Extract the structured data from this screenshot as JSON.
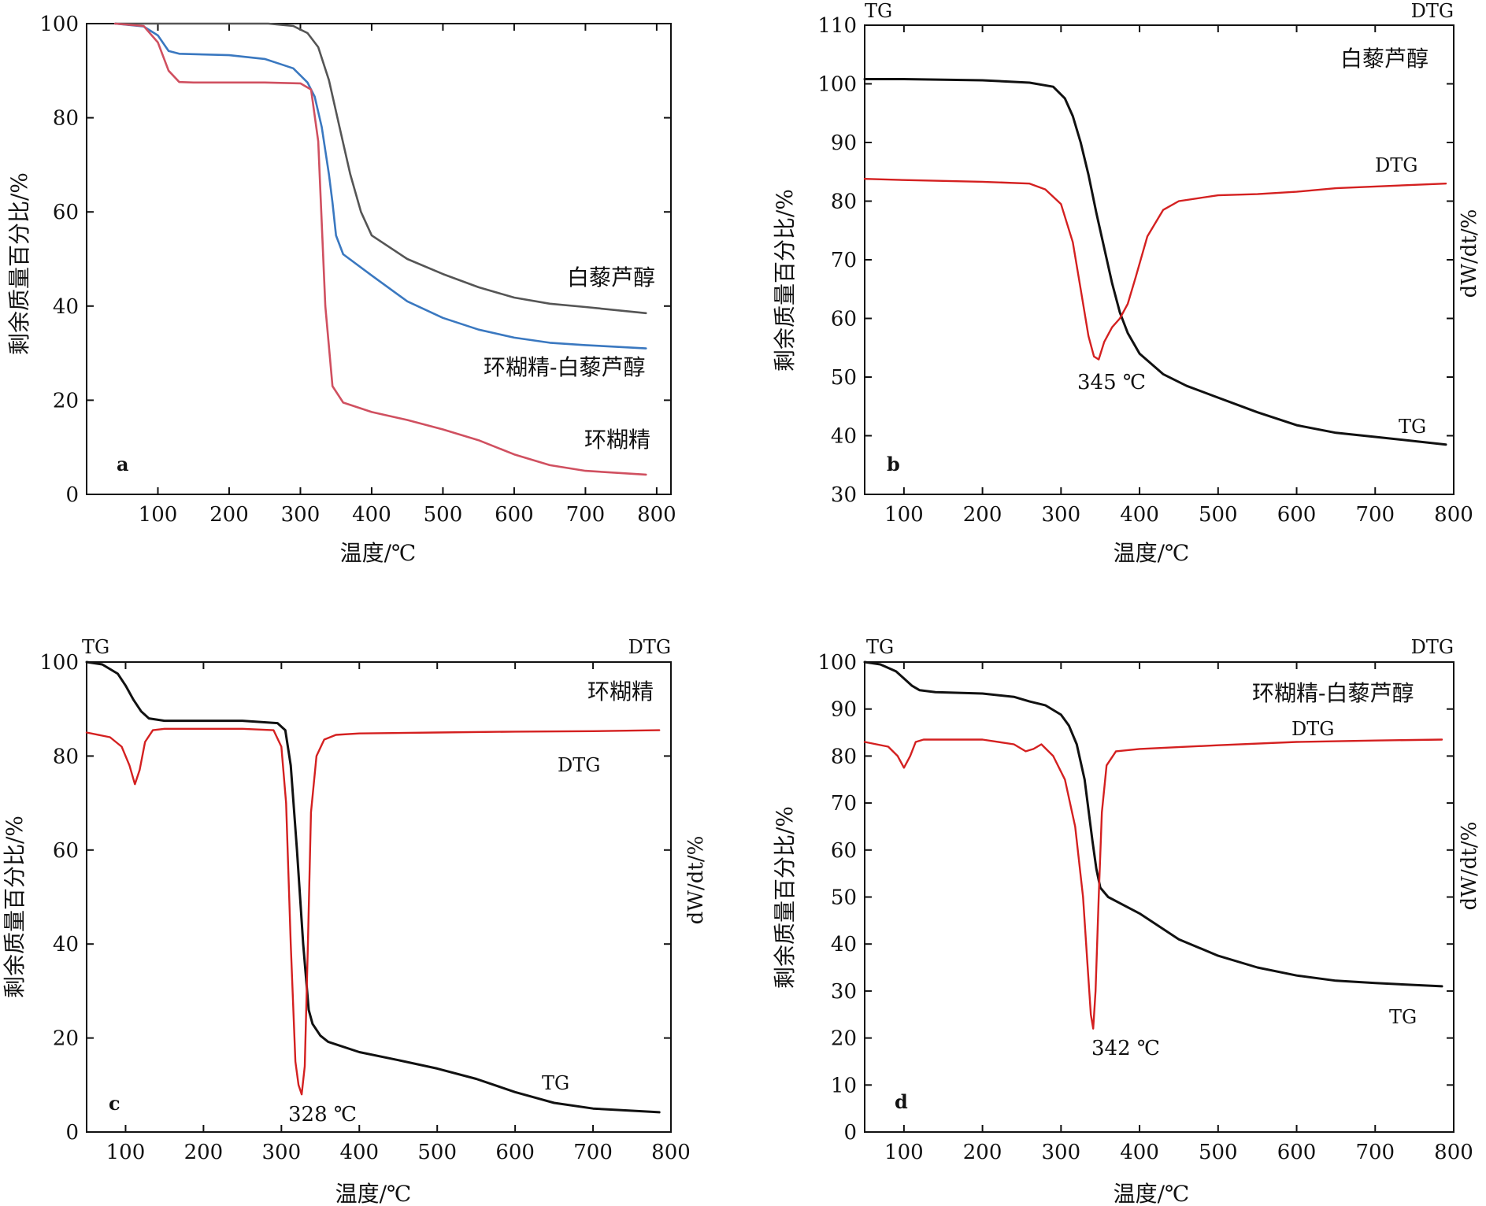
{
  "chart_data": [
    {
      "panel": "a",
      "type": "line",
      "xlabel": "温度/℃",
      "ylabel": "剩余质量百分比/%",
      "xlim": [
        0,
        820
      ],
      "ylim": [
        0,
        100
      ],
      "xticks": [
        100,
        200,
        300,
        400,
        500,
        600,
        700,
        800
      ],
      "yticks": [
        0,
        20,
        40,
        60,
        80,
        100
      ],
      "grid": false,
      "series": [
        {
          "name": "白藜芦醇",
          "color": "#555555",
          "x": [
            40,
            100,
            200,
            255,
            290,
            310,
            325,
            340,
            355,
            370,
            385,
            400,
            450,
            500,
            550,
            600,
            650,
            700,
            785
          ],
          "y": [
            100,
            100,
            100,
            100,
            99.5,
            98,
            95,
            88,
            78,
            68,
            60,
            55,
            50,
            46.8,
            44,
            41.8,
            40.5,
            39.8,
            38.5
          ]
        },
        {
          "name": "环糊精-白藜芦醇",
          "color": "#3a78c0",
          "x": [
            40,
            80,
            100,
            115,
            130,
            200,
            250,
            270,
            290,
            310,
            320,
            330,
            340,
            345,
            350,
            360,
            400,
            450,
            500,
            550,
            600,
            650,
            700,
            785
          ],
          "y": [
            100,
            99.4,
            97.5,
            94.2,
            93.6,
            93.3,
            92.5,
            91.5,
            90.5,
            87.5,
            84.5,
            78,
            68,
            62,
            55,
            51,
            46.5,
            41,
            37.5,
            35,
            33.3,
            32.2,
            31.7,
            31
          ]
        },
        {
          "name": "环糊精",
          "color": "#d05060",
          "x": [
            40,
            80,
            100,
            115,
            130,
            150,
            200,
            250,
            300,
            315,
            325,
            335,
            345,
            360,
            400,
            450,
            500,
            550,
            600,
            650,
            700,
            785
          ],
          "y": [
            100,
            99.5,
            96,
            90,
            87.6,
            87.5,
            87.5,
            87.5,
            87.3,
            86,
            75,
            40,
            23,
            19.5,
            17.5,
            15.8,
            13.8,
            11.5,
            8.5,
            6.2,
            5,
            4.2
          ]
        }
      ],
      "annotations": [
        "白藜芦醇",
        "环糊精-白藜芦醇",
        "环糊精",
        "a"
      ]
    },
    {
      "panel": "b",
      "type": "line",
      "xlabel": "温度/℃",
      "ylabel": "剩余质量百分比/%",
      "y2label": "dW/dt/%",
      "xlim": [
        50,
        800
      ],
      "ylim": [
        30,
        110
      ],
      "xticks": [
        100,
        200,
        300,
        400,
        500,
        600,
        700,
        800
      ],
      "yticks": [
        30,
        40,
        50,
        60,
        70,
        80,
        90,
        100,
        110
      ],
      "grid": false,
      "corner_labels": [
        "TG",
        "DTG"
      ],
      "series": [
        {
          "name": "TG",
          "color": "#111111",
          "x": [
            50,
            100,
            200,
            260,
            290,
            305,
            315,
            325,
            335,
            345,
            355,
            365,
            375,
            385,
            400,
            430,
            460,
            500,
            550,
            600,
            650,
            700,
            790
          ],
          "y": [
            100.8,
            100.8,
            100.6,
            100.2,
            99.5,
            97.5,
            94.5,
            90,
            84.5,
            78,
            72,
            66,
            61,
            57.5,
            54,
            50.5,
            48.5,
            46.5,
            44,
            41.8,
            40.5,
            39.8,
            38.5
          ]
        },
        {
          "name": "DTG",
          "color": "#d42020",
          "x": [
            50,
            100,
            200,
            260,
            280,
            300,
            315,
            325,
            335,
            342,
            348,
            355,
            365,
            375,
            385,
            395,
            410,
            430,
            450,
            480,
            500,
            550,
            600,
            650,
            700,
            790
          ],
          "y": [
            83.8,
            83.6,
            83.3,
            83,
            82,
            79.5,
            73,
            65,
            57,
            53.5,
            53,
            56,
            58.5,
            60,
            62.5,
            67,
            74,
            78.5,
            80,
            80.6,
            81,
            81.2,
            81.6,
            82.2,
            82.5,
            83
          ]
        }
      ],
      "annotations": [
        "白藜芦醇",
        "DTG",
        "345 ℃",
        "TG",
        "b"
      ]
    },
    {
      "panel": "c",
      "type": "line",
      "xlabel": "温度/℃",
      "ylabel": "剩余质量百分比/%",
      "y2label": "dW/dt/%",
      "xlim": [
        50,
        800
      ],
      "ylim": [
        0,
        100
      ],
      "xticks": [
        100,
        200,
        300,
        400,
        500,
        600,
        700,
        800
      ],
      "yticks": [
        0,
        20,
        40,
        60,
        80,
        100
      ],
      "grid": false,
      "corner_labels": [
        "TG",
        "DTG"
      ],
      "series": [
        {
          "name": "TG",
          "color": "#111111",
          "x": [
            50,
            70,
            90,
            100,
            110,
            120,
            130,
            150,
            200,
            250,
            295,
            305,
            312,
            320,
            328,
            335,
            340,
            350,
            360,
            400,
            450,
            500,
            550,
            600,
            650,
            700,
            785
          ],
          "y": [
            100,
            99.5,
            97.5,
            95,
            92,
            89.5,
            88,
            87.5,
            87.5,
            87.5,
            87,
            85.5,
            78,
            60,
            40,
            26,
            23,
            20.5,
            19.2,
            17,
            15.3,
            13.5,
            11.3,
            8.5,
            6.2,
            5,
            4.2
          ]
        },
        {
          "name": "DTG",
          "color": "#d42020",
          "x": [
            50,
            80,
            95,
            105,
            112,
            118,
            125,
            135,
            150,
            200,
            250,
            290,
            300,
            306,
            312,
            318,
            322,
            326,
            330,
            334,
            338,
            345,
            355,
            370,
            400,
            500,
            600,
            700,
            785
          ],
          "y": [
            85,
            84,
            82,
            78,
            74,
            77,
            83,
            85.5,
            85.8,
            85.8,
            85.8,
            85.5,
            82,
            70,
            40,
            15,
            10,
            8,
            14,
            40,
            68,
            80,
            83.5,
            84.5,
            84.8,
            85,
            85.2,
            85.3,
            85.5
          ]
        }
      ],
      "annotations": [
        "环糊精",
        "DTG",
        "328 ℃",
        "TG",
        "c"
      ]
    },
    {
      "panel": "d",
      "type": "line",
      "xlabel": "温度/℃",
      "ylabel": "剩余质量百分比/%",
      "y2label": "dW/dt/%",
      "xlim": [
        50,
        800
      ],
      "ylim": [
        0,
        100
      ],
      "xticks": [
        100,
        200,
        300,
        400,
        500,
        600,
        700,
        800
      ],
      "yticks": [
        0,
        10,
        20,
        30,
        40,
        50,
        60,
        70,
        80,
        90,
        100
      ],
      "grid": false,
      "corner_labels": [
        "TG",
        "DTG"
      ],
      "series": [
        {
          "name": "TG",
          "color": "#111111",
          "x": [
            50,
            70,
            90,
            100,
            110,
            120,
            140,
            200,
            240,
            260,
            280,
            300,
            310,
            320,
            330,
            340,
            345,
            350,
            360,
            400,
            450,
            500,
            550,
            600,
            650,
            700,
            785
          ],
          "y": [
            100,
            99.5,
            98,
            96.5,
            95,
            94,
            93.6,
            93.3,
            92.6,
            91.6,
            90.8,
            88.8,
            86.5,
            82.5,
            75,
            62,
            56,
            52,
            50,
            46.5,
            41,
            37.5,
            35,
            33.3,
            32.2,
            31.7,
            31
          ]
        },
        {
          "name": "DTG",
          "color": "#d42020",
          "x": [
            50,
            80,
            92,
            100,
            108,
            115,
            125,
            150,
            200,
            240,
            255,
            265,
            275,
            290,
            305,
            318,
            328,
            334,
            338,
            341,
            344,
            348,
            352,
            358,
            370,
            400,
            500,
            600,
            700,
            785
          ],
          "y": [
            83,
            82,
            80,
            77.5,
            80,
            83,
            83.5,
            83.5,
            83.5,
            82.5,
            81,
            81.5,
            82.5,
            80,
            75,
            65,
            50,
            35,
            25,
            22,
            30,
            50,
            68,
            78,
            81,
            81.5,
            82.3,
            83,
            83.3,
            83.5
          ]
        }
      ],
      "annotations": [
        "环糊精-白藜芦醇",
        "DTG",
        "342 ℃",
        "TG",
        "d"
      ]
    }
  ]
}
